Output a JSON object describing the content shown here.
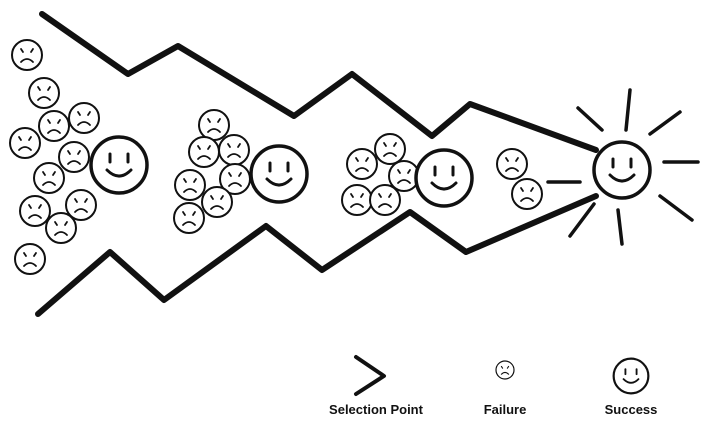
{
  "legend": {
    "selection_point": "Selection Point",
    "failure": "Failure",
    "success": "Success"
  },
  "colors": {
    "ink": "#111111",
    "background": "#ffffff"
  },
  "icons": {
    "failure": "frowning-face-icon",
    "success": "smiling-face-icon",
    "sun": "sun-icon",
    "selection_point": "chevron-right-icon"
  }
}
